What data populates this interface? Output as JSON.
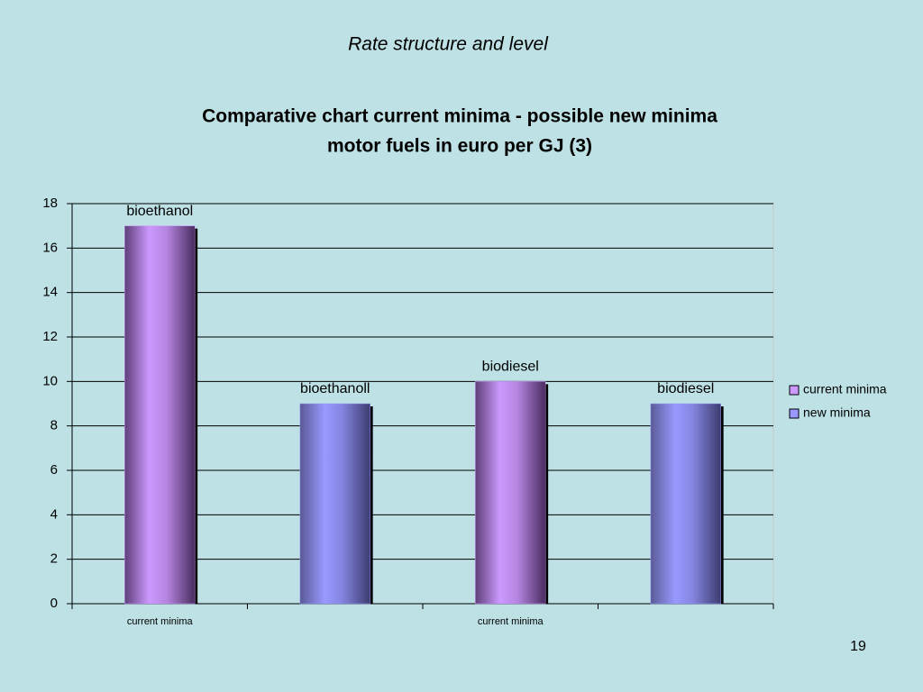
{
  "slide": {
    "heading": "Rate structure and level",
    "page_number": "19"
  },
  "chart_data": {
    "type": "bar",
    "title_lines": [
      "Comparative chart current minima - possible new minima",
      "motor fuels  in euro per GJ (3)"
    ],
    "categories": [
      "current minima",
      null,
      "current minima",
      null
    ],
    "series": [
      {
        "name": "current minima",
        "color": "#cc99ff",
        "values": [
          17,
          null,
          10,
          null
        ]
      },
      {
        "name": "new minima",
        "color": "#9999ff",
        "values": [
          null,
          9,
          null,
          9
        ]
      }
    ],
    "bar_labels": [
      "bioethanol",
      "bioethanoll",
      "biodiesel",
      "biodiesel"
    ],
    "ylim": [
      0,
      18
    ],
    "yticks": [
      0,
      2,
      4,
      6,
      8,
      10,
      12,
      14,
      16,
      18
    ],
    "grid": true,
    "legend": "right"
  }
}
